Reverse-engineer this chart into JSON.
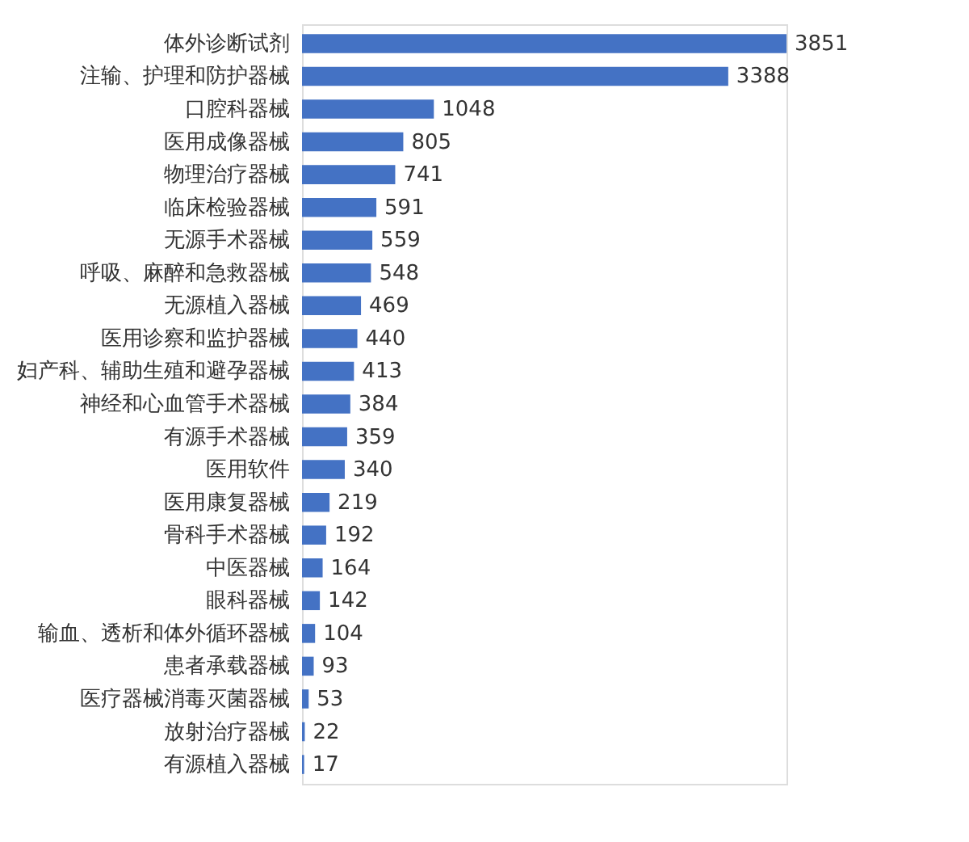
{
  "chart_data": {
    "type": "bar",
    "orientation": "horizontal",
    "color": "#4472c4",
    "data_labels": true,
    "grid": false,
    "categories": [
      "体外诊断试剂",
      "注输、护理和防护器械",
      "口腔科器械",
      "医用成像器械",
      "物理治疗器械",
      "临床检验器械",
      "无源手术器械",
      "呼吸、麻醉和急救器械",
      "无源植入器械",
      "医用诊察和监护器械",
      "妇产科、辅助生殖和避孕器械",
      "神经和心血管手术器械",
      "有源手术器械",
      "医用软件",
      "医用康复器械",
      "骨科手术器械",
      "中医器械",
      "眼科器械",
      "输血、透析和体外循环器械",
      "患者承载器械",
      "医疗器械消毒灭菌器械",
      "放射治疗器械",
      "有源植入器械"
    ],
    "values": [
      3851,
      3388,
      1048,
      805,
      741,
      591,
      559,
      548,
      469,
      440,
      413,
      384,
      359,
      340,
      219,
      192,
      164,
      142,
      104,
      93,
      53,
      22,
      17
    ]
  }
}
